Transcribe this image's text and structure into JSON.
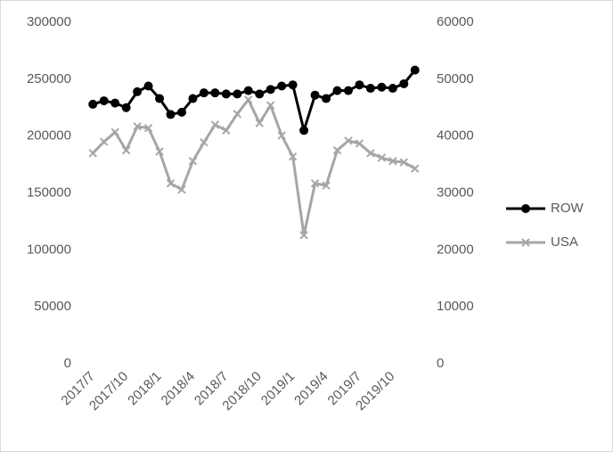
{
  "chart_data": {
    "type": "line",
    "categories": [
      "2017/7",
      null,
      null,
      "2017/10",
      null,
      null,
      "2018/1",
      null,
      null,
      "2018/4",
      null,
      null,
      "2018/7",
      null,
      null,
      "2018/10",
      null,
      null,
      "2019/1",
      null,
      null,
      "2019/4",
      null,
      null,
      "2019/7",
      null,
      null,
      "2019/10",
      null,
      null
    ],
    "series": [
      {
        "name": "ROW",
        "color": "#000000",
        "marker": "circle",
        "axis": "y",
        "values": [
          228000,
          231000,
          229000,
          225000,
          239000,
          244000,
          233000,
          219000,
          221000,
          233000,
          238000,
          238000,
          237000,
          237000,
          240000,
          237000,
          241000,
          244000,
          245000,
          205000,
          236000,
          233000,
          240000,
          240000,
          245000,
          242000,
          243000,
          242000,
          246000,
          258000
        ]
      },
      {
        "name": "USA",
        "color": "#a6a6a6",
        "marker": "x",
        "axis": "y2",
        "values": [
          37000,
          39000,
          40700,
          37500,
          41700,
          41400,
          37300,
          31700,
          30600,
          35600,
          38900,
          42000,
          41000,
          43900,
          46400,
          42300,
          45400,
          40100,
          36400,
          22600,
          31700,
          31300,
          37500,
          39200,
          38700,
          37000,
          36200,
          35600,
          35400,
          34300
        ]
      }
    ],
    "ylim": [
      0,
      300000
    ],
    "yticks": [
      0,
      50000,
      100000,
      150000,
      200000,
      250000,
      300000
    ],
    "y2lim": [
      0,
      60000
    ],
    "y2ticks": [
      0,
      10000,
      20000,
      30000,
      40000,
      50000,
      60000
    ],
    "grid": false,
    "legend": "right"
  }
}
